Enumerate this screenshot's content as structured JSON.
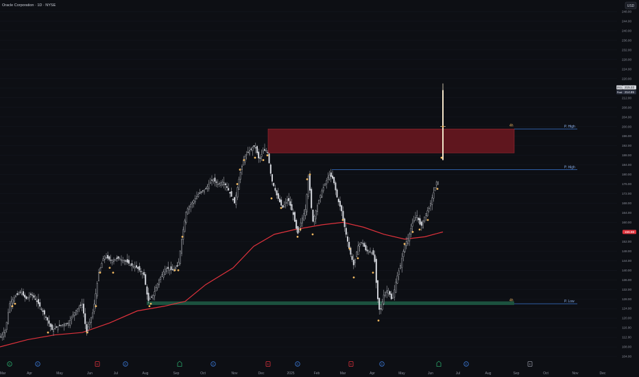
{
  "header": {
    "symbol_title": "Oracle Corporation · 1D · NYSE",
    "currency_button": "USD"
  },
  "colors": {
    "background": "#0d0f14",
    "candle": "#d8dae0",
    "marker": "#f0b860",
    "ma_line": "#e0323c",
    "supply_zone": "#6e1820",
    "demand_zone": "#1e5a44",
    "level_line": "#3a78d6",
    "axis_text": "#8c909c"
  },
  "chart_data": {
    "type": "candlestick",
    "y_axis": {
      "range": [
        102,
        252
      ],
      "ticks": [
        104,
        108,
        112,
        116,
        120,
        124,
        128,
        132,
        136,
        140,
        144,
        148,
        152,
        156,
        160,
        164,
        168,
        172,
        176,
        180,
        184,
        188,
        192,
        196,
        200,
        204,
        208,
        212,
        216,
        220,
        224,
        228,
        232,
        236,
        240,
        244,
        248
      ]
    },
    "x_axis": {
      "labels": [
        "Mar",
        "Apr",
        "May",
        "Jun",
        "Jul",
        "Aug",
        "Sep",
        "Oct",
        "Nov",
        "Dec",
        "2025",
        "Feb",
        "Mar",
        "Apr",
        "May",
        "Jun",
        "Jul",
        "Aug",
        "Sep",
        "Oct",
        "Nov",
        "Dec"
      ]
    },
    "price_labels": {
      "last": {
        "symbol": "ORCL",
        "value": "215.22"
      },
      "post": {
        "label": "Post",
        "value": "214.85"
      },
      "ma": {
        "value": "155.98"
      }
    },
    "price_path": [
      {
        "x": 0,
        "y": 112
      },
      {
        "x": 8,
        "y": 115
      },
      {
        "x": 14,
        "y": 126
      },
      {
        "x": 22,
        "y": 129
      },
      {
        "x": 30,
        "y": 131
      },
      {
        "x": 38,
        "y": 128
      },
      {
        "x": 46,
        "y": 130
      },
      {
        "x": 56,
        "y": 126
      },
      {
        "x": 66,
        "y": 121
      },
      {
        "x": 76,
        "y": 115
      },
      {
        "x": 88,
        "y": 117
      },
      {
        "x": 100,
        "y": 118
      },
      {
        "x": 110,
        "y": 123
      },
      {
        "x": 120,
        "y": 126
      },
      {
        "x": 126,
        "y": 114
      },
      {
        "x": 136,
        "y": 123
      },
      {
        "x": 144,
        "y": 139
      },
      {
        "x": 152,
        "y": 146
      },
      {
        "x": 162,
        "y": 144
      },
      {
        "x": 172,
        "y": 145
      },
      {
        "x": 182,
        "y": 144
      },
      {
        "x": 192,
        "y": 142
      },
      {
        "x": 200,
        "y": 141
      },
      {
        "x": 210,
        "y": 138
      },
      {
        "x": 216,
        "y": 127
      },
      {
        "x": 224,
        "y": 130
      },
      {
        "x": 232,
        "y": 136
      },
      {
        "x": 242,
        "y": 141
      },
      {
        "x": 252,
        "y": 140
      },
      {
        "x": 260,
        "y": 142
      },
      {
        "x": 266,
        "y": 155
      },
      {
        "x": 272,
        "y": 165
      },
      {
        "x": 280,
        "y": 168
      },
      {
        "x": 290,
        "y": 172
      },
      {
        "x": 300,
        "y": 174
      },
      {
        "x": 310,
        "y": 178
      },
      {
        "x": 318,
        "y": 176
      },
      {
        "x": 326,
        "y": 177
      },
      {
        "x": 334,
        "y": 173
      },
      {
        "x": 342,
        "y": 168
      },
      {
        "x": 350,
        "y": 180
      },
      {
        "x": 356,
        "y": 187
      },
      {
        "x": 364,
        "y": 190
      },
      {
        "x": 372,
        "y": 192
      },
      {
        "x": 378,
        "y": 186
      },
      {
        "x": 384,
        "y": 190
      },
      {
        "x": 390,
        "y": 190
      },
      {
        "x": 396,
        "y": 178
      },
      {
        "x": 404,
        "y": 171
      },
      {
        "x": 412,
        "y": 166
      },
      {
        "x": 420,
        "y": 170
      },
      {
        "x": 428,
        "y": 163
      },
      {
        "x": 434,
        "y": 155
      },
      {
        "x": 440,
        "y": 161
      },
      {
        "x": 446,
        "y": 166
      },
      {
        "x": 450,
        "y": 180
      },
      {
        "x": 456,
        "y": 160
      },
      {
        "x": 462,
        "y": 166
      },
      {
        "x": 468,
        "y": 172
      },
      {
        "x": 474,
        "y": 176
      },
      {
        "x": 480,
        "y": 180
      },
      {
        "x": 486,
        "y": 178
      },
      {
        "x": 492,
        "y": 170
      },
      {
        "x": 498,
        "y": 165
      },
      {
        "x": 504,
        "y": 156
      },
      {
        "x": 510,
        "y": 148
      },
      {
        "x": 516,
        "y": 142
      },
      {
        "x": 522,
        "y": 150
      },
      {
        "x": 528,
        "y": 152
      },
      {
        "x": 534,
        "y": 148
      },
      {
        "x": 540,
        "y": 148
      },
      {
        "x": 546,
        "y": 146
      },
      {
        "x": 550,
        "y": 130
      },
      {
        "x": 554,
        "y": 122
      },
      {
        "x": 560,
        "y": 130
      },
      {
        "x": 566,
        "y": 132
      },
      {
        "x": 572,
        "y": 127
      },
      {
        "x": 578,
        "y": 136
      },
      {
        "x": 584,
        "y": 142
      },
      {
        "x": 590,
        "y": 150
      },
      {
        "x": 596,
        "y": 154
      },
      {
        "x": 602,
        "y": 160
      },
      {
        "x": 608,
        "y": 163
      },
      {
        "x": 614,
        "y": 158
      },
      {
        "x": 620,
        "y": 163
      },
      {
        "x": 626,
        "y": 166
      },
      {
        "x": 632,
        "y": 172
      },
      {
        "x": 638,
        "y": 178
      },
      {
        "x": 640,
        "y": 176
      }
    ],
    "spike": {
      "x": 646,
      "open": 186,
      "close": 215.22,
      "high": 218,
      "low": 186
    },
    "ma_path": [
      {
        "x": 0,
        "y": 108
      },
      {
        "x": 40,
        "y": 111
      },
      {
        "x": 80,
        "y": 113
      },
      {
        "x": 120,
        "y": 114
      },
      {
        "x": 160,
        "y": 118
      },
      {
        "x": 200,
        "y": 123
      },
      {
        "x": 240,
        "y": 125
      },
      {
        "x": 270,
        "y": 127
      },
      {
        "x": 300,
        "y": 134
      },
      {
        "x": 340,
        "y": 141
      },
      {
        "x": 370,
        "y": 150
      },
      {
        "x": 400,
        "y": 155
      },
      {
        "x": 430,
        "y": 157
      },
      {
        "x": 470,
        "y": 159
      },
      {
        "x": 500,
        "y": 160
      },
      {
        "x": 530,
        "y": 158
      },
      {
        "x": 560,
        "y": 155
      },
      {
        "x": 590,
        "y": 153
      },
      {
        "x": 620,
        "y": 154
      },
      {
        "x": 646,
        "y": 156
      }
    ],
    "markers": [
      {
        "x": 18,
        "y": 125
      },
      {
        "x": 22,
        "y": 126
      },
      {
        "x": 70,
        "y": 114
      },
      {
        "x": 127,
        "y": 114
      },
      {
        "x": 140,
        "y": 125
      },
      {
        "x": 146,
        "y": 139
      },
      {
        "x": 160,
        "y": 141
      },
      {
        "x": 165,
        "y": 139
      },
      {
        "x": 218,
        "y": 125
      },
      {
        "x": 220,
        "y": 126
      },
      {
        "x": 255,
        "y": 140
      },
      {
        "x": 260,
        "y": 140
      },
      {
        "x": 266,
        "y": 154
      },
      {
        "x": 346,
        "y": 176
      },
      {
        "x": 350,
        "y": 182
      },
      {
        "x": 356,
        "y": 186
      },
      {
        "x": 372,
        "y": 187
      },
      {
        "x": 384,
        "y": 186
      },
      {
        "x": 390,
        "y": 188
      },
      {
        "x": 396,
        "y": 170
      },
      {
        "x": 410,
        "y": 166
      },
      {
        "x": 434,
        "y": 154
      },
      {
        "x": 438,
        "y": 157
      },
      {
        "x": 448,
        "y": 178
      },
      {
        "x": 452,
        "y": 180
      },
      {
        "x": 456,
        "y": 155
      },
      {
        "x": 500,
        "y": 161
      },
      {
        "x": 510,
        "y": 149
      },
      {
        "x": 516,
        "y": 137
      },
      {
        "x": 522,
        "y": 145
      },
      {
        "x": 544,
        "y": 139
      },
      {
        "x": 552,
        "y": 119
      },
      {
        "x": 590,
        "y": 151
      },
      {
        "x": 602,
        "y": 156
      },
      {
        "x": 612,
        "y": 157
      },
      {
        "x": 624,
        "y": 161
      },
      {
        "x": 638,
        "y": 174
      },
      {
        "x": 644,
        "y": 187
      },
      {
        "x": 646,
        "y": 200
      }
    ],
    "supply_zone": {
      "x1": 391,
      "x2": 750,
      "y_top": 199,
      "y_bottom": 189
    },
    "demand_zone": {
      "x1": 214,
      "x2": 750,
      "y_top": 127,
      "y_bottom": 125.5
    },
    "levels": [
      {
        "x1": 750,
        "x2": 842,
        "y": 199,
        "label": "P. High",
        "tf": "4h"
      },
      {
        "x1": 484,
        "x2": 842,
        "y": 182,
        "label": "P. High",
        "tf": ""
      },
      {
        "x1": 750,
        "x2": 842,
        "y": 126,
        "label": "P. Low",
        "tf": "4h"
      }
    ],
    "event_icons": [
      {
        "x": 14,
        "type": "dividend",
        "label": "D",
        "color": "#2aa56a"
      },
      {
        "x": 55,
        "type": "dividend",
        "label": "D",
        "color": "#3a78d6"
      },
      {
        "x": 142,
        "type": "earnings",
        "label": "E",
        "color": "#e0323c"
      },
      {
        "x": 183,
        "type": "dividend",
        "label": "D",
        "color": "#3a78d6"
      },
      {
        "x": 262,
        "type": "split",
        "label": "",
        "color": "#2aa56a"
      },
      {
        "x": 311,
        "type": "dividend",
        "label": "D",
        "color": "#3a78d6"
      },
      {
        "x": 391,
        "type": "earnings",
        "label": "E",
        "color": "#e0323c"
      },
      {
        "x": 434,
        "type": "dividend",
        "label": "D",
        "color": "#3a78d6"
      },
      {
        "x": 512,
        "type": "earnings",
        "label": "E",
        "color": "#e0323c"
      },
      {
        "x": 557,
        "type": "dividend",
        "label": "D",
        "color": "#3a78d6"
      },
      {
        "x": 640,
        "type": "split",
        "label": "",
        "color": "#2aa56a"
      },
      {
        "x": 680,
        "type": "dividend",
        "label": "D",
        "color": "#3a78d6"
      },
      {
        "x": 773,
        "type": "earnings",
        "label": "E",
        "color": "#8c909c"
      }
    ]
  }
}
